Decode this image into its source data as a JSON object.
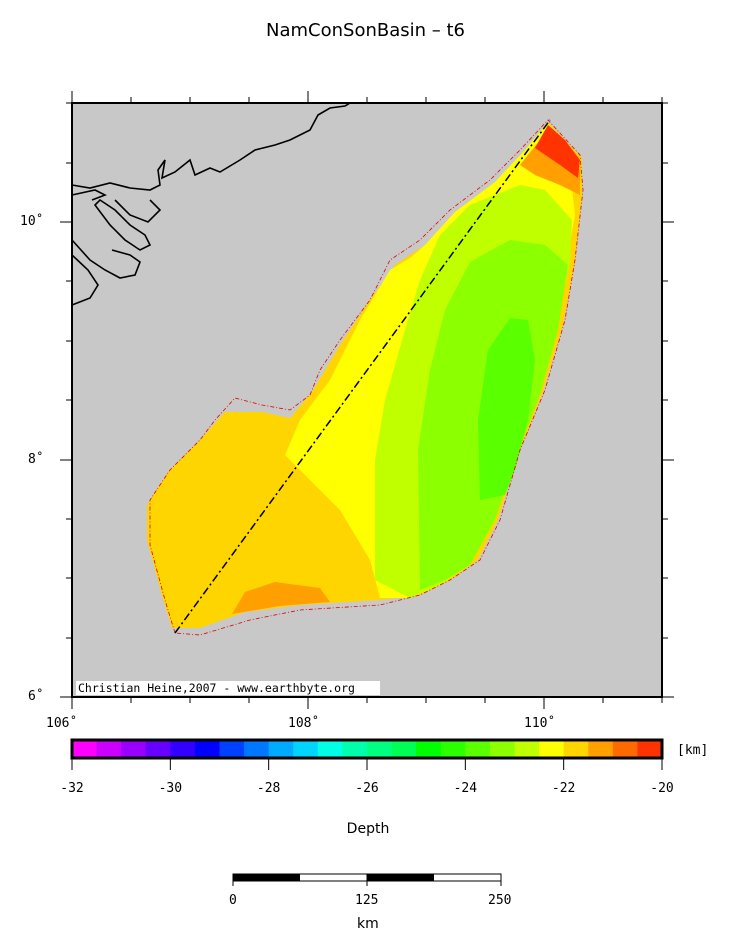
{
  "title": "NamConSonBasin – t6",
  "map": {
    "lon_ticks": [
      "106˚",
      "108˚",
      "110˚"
    ],
    "lat_ticks": [
      "6˚",
      "8˚",
      "10˚"
    ],
    "lon_range": [
      106,
      111
    ],
    "lat_range": [
      6,
      11
    ],
    "background_color": "#c8c8c8",
    "credit": "Christian Heine,2007 - www.earthbyte.org",
    "profile_line": "dash-dot black"
  },
  "colorbar": {
    "label": "Depth",
    "unit": "[km]",
    "range": [
      -32,
      -20
    ],
    "ticks": [
      "-32",
      "-30",
      "-28",
      "-26",
      "-24",
      "-22",
      "-20"
    ],
    "colors": [
      "#ff00ff",
      "#cc00ff",
      "#9900ff",
      "#6600ff",
      "#3300ff",
      "#0000ff",
      "#0040ff",
      "#0077ff",
      "#00aaff",
      "#00d5ff",
      "#00ffe5",
      "#00ffaa",
      "#00ff80",
      "#00ff55",
      "#00ff00",
      "#2bff00",
      "#5aff00",
      "#8cff00",
      "#bfff00",
      "#ffff00",
      "#ffd500",
      "#ffa000",
      "#ff6a00",
      "#ff3300"
    ]
  },
  "scalebar": {
    "ticks": [
      "0",
      "125",
      "250"
    ],
    "unit": "km"
  }
}
